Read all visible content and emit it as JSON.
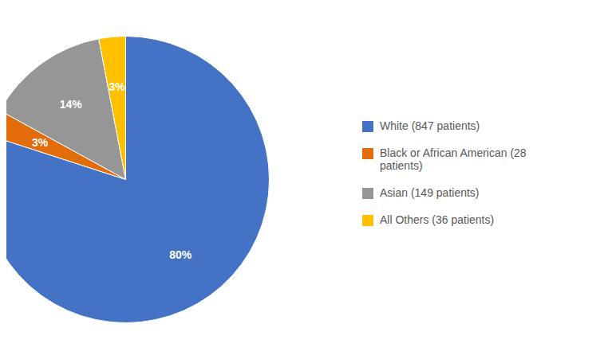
{
  "chart_data": {
    "type": "pie",
    "categories": [
      "White (847 patients)",
      "Black or African American (28\n patients)",
      "Asian (149 patients)",
      "All Others (36 patients)"
    ],
    "values": [
      80,
      3,
      14,
      3
    ],
    "value_labels": [
      "80%",
      "3%",
      "14%",
      "3%"
    ],
    "colors": [
      "#4472C4",
      "#E36C0A",
      "#969696",
      "#FFC000"
    ],
    "data_labels": true,
    "legend": "right"
  }
}
